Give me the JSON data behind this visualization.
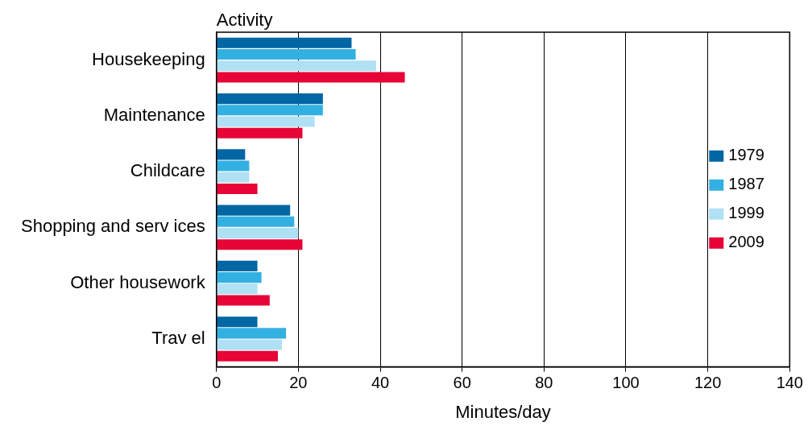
{
  "chart_data": {
    "type": "bar",
    "orientation": "horizontal",
    "title": "Activity",
    "xlabel": "Minutes/day",
    "categories": [
      "Housekeeping",
      "Maintenance",
      "Childcare",
      "Shopping and serv ices",
      "Other housework",
      "Trav el"
    ],
    "series": [
      {
        "name": "1979",
        "color": "#0066a4",
        "values": [
          33,
          26,
          7,
          18,
          10,
          10
        ]
      },
      {
        "name": "1987",
        "color": "#33b0e2",
        "values": [
          34,
          26,
          8,
          19,
          11,
          17
        ]
      },
      {
        "name": "1999",
        "color": "#b0e0f4",
        "values": [
          39,
          24,
          8,
          20,
          10,
          16
        ]
      },
      {
        "name": "2009",
        "color": "#e60536",
        "values": [
          46,
          21,
          10,
          21,
          13,
          15
        ]
      }
    ],
    "xlim": [
      0,
      140
    ],
    "xticks": [
      0,
      20,
      40,
      60,
      80,
      100,
      120,
      140
    ],
    "grid": "x",
    "legend": "right"
  }
}
